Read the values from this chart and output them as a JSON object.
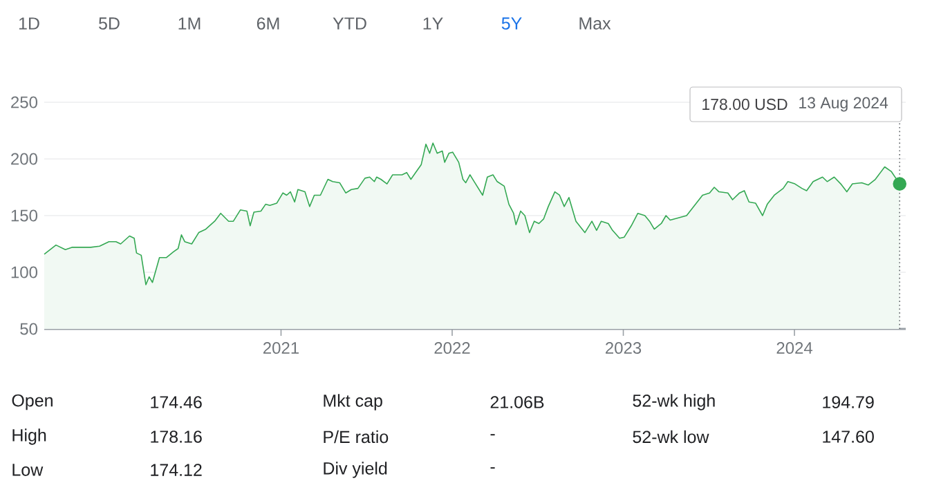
{
  "chart_data": {
    "type": "area",
    "ylim": [
      50,
      250
    ],
    "yticks": [
      50,
      100,
      150,
      200,
      250
    ],
    "xlim": [
      "2019-08-14",
      "2024-08-26"
    ],
    "xticks": [
      "2021",
      "2022",
      "2023",
      "2024"
    ],
    "grid": "y",
    "x": [
      "2019-08-14",
      "2019-09-08",
      "2019-09-28",
      "2019-10-12",
      "2019-11-21",
      "2019-12-10",
      "2019-12-30",
      "2020-01-14",
      "2020-01-24",
      "2020-02-12",
      "2020-02-22",
      "2020-02-27",
      "2020-03-08",
      "2020-03-18",
      "2020-03-25",
      "2020-04-01",
      "2020-04-16",
      "2020-05-01",
      "2020-05-16",
      "2020-05-26",
      "2020-06-02",
      "2020-06-09",
      "2020-06-24",
      "2020-07-09",
      "2020-07-24",
      "2020-08-12",
      "2020-08-25",
      "2020-09-11",
      "2020-09-21",
      "2020-10-06",
      "2020-10-20",
      "2020-10-27",
      "2020-11-04",
      "2020-11-19",
      "2020-11-29",
      "2020-12-08",
      "2020-12-23",
      "2021-01-05",
      "2021-01-13",
      "2021-01-21",
      "2021-01-30",
      "2021-02-06",
      "2021-02-21",
      "2021-03-03",
      "2021-03-13",
      "2021-03-26",
      "2021-04-11",
      "2021-04-21",
      "2021-05-06",
      "2021-05-19",
      "2021-05-31",
      "2021-06-14",
      "2021-06-29",
      "2021-07-09",
      "2021-07-19",
      "2021-07-24",
      "2021-08-02",
      "2021-08-15",
      "2021-08-27",
      "2021-09-16",
      "2021-09-26",
      "2021-10-05",
      "2021-10-15",
      "2021-10-27",
      "2021-11-06",
      "2021-11-14",
      "2021-11-21",
      "2021-11-30",
      "2021-12-11",
      "2021-12-16",
      "2021-12-25",
      "2022-01-02",
      "2022-01-15",
      "2022-01-24",
      "2022-01-30",
      "2022-02-08",
      "2022-02-17",
      "2022-03-07",
      "2022-03-17",
      "2022-03-29",
      "2022-04-07",
      "2022-04-22",
      "2022-05-02",
      "2022-05-12",
      "2022-05-17",
      "2022-05-27",
      "2022-06-05",
      "2022-06-15",
      "2022-06-25",
      "2022-07-05",
      "2022-07-15",
      "2022-07-25",
      "2022-08-08",
      "2022-08-18",
      "2022-08-28",
      "2022-09-07",
      "2022-09-22",
      "2022-10-11",
      "2022-10-26",
      "2022-11-05",
      "2022-11-15",
      "2022-11-30",
      "2022-12-09",
      "2022-12-24",
      "2023-01-03",
      "2023-01-18",
      "2023-02-01",
      "2023-02-16",
      "2023-02-26",
      "2023-03-08",
      "2023-03-23",
      "2023-04-02",
      "2023-04-11",
      "2023-05-16",
      "2023-06-04",
      "2023-06-19",
      "2023-07-04",
      "2023-07-14",
      "2023-07-24",
      "2023-08-12",
      "2023-08-22",
      "2023-09-06",
      "2023-09-16",
      "2023-09-26",
      "2023-10-10",
      "2023-10-25",
      "2023-11-04",
      "2023-11-19",
      "2023-12-08",
      "2023-12-18",
      "2024-01-02",
      "2024-01-17",
      "2024-01-27",
      "2024-02-10",
      "2024-03-01",
      "2024-03-11",
      "2024-03-26",
      "2024-04-09",
      "2024-04-22",
      "2024-05-04",
      "2024-05-24",
      "2024-06-07",
      "2024-06-22",
      "2024-07-12",
      "2024-07-26",
      "2024-08-13"
    ],
    "series": [
      {
        "color": "#34a853",
        "values": [
          116,
          124,
          120,
          122,
          122,
          123,
          127,
          127,
          125,
          132,
          130,
          117,
          115,
          89,
          96,
          91,
          113,
          113,
          118,
          121,
          133,
          127,
          125,
          135,
          138,
          145,
          152,
          145,
          145,
          155,
          154,
          141,
          153,
          154,
          160,
          159,
          161,
          170,
          168,
          171,
          162,
          173,
          171,
          158,
          168,
          168,
          182,
          180,
          179,
          170,
          173,
          174,
          183,
          184,
          180,
          184,
          182,
          178,
          186,
          186,
          188,
          182,
          188,
          195,
          213,
          205,
          214,
          205,
          207,
          197,
          205,
          206,
          197,
          182,
          179,
          186,
          180,
          168,
          184,
          186,
          180,
          176,
          160,
          152,
          142,
          154,
          150,
          135,
          145,
          143,
          147,
          158,
          171,
          168,
          158,
          166,
          145,
          135,
          145,
          137,
          145,
          143,
          137,
          130,
          131,
          141,
          152,
          150,
          145,
          138,
          143,
          150,
          146,
          150,
          160,
          168,
          170,
          175,
          171,
          170,
          164,
          170,
          172,
          162,
          161,
          150,
          160,
          168,
          174,
          180,
          178,
          174,
          172,
          180,
          184,
          180,
          184,
          178,
          171,
          178,
          179,
          177,
          182,
          193,
          189,
          178
        ]
      }
    ],
    "ref_lines": [
      {
        "axis": "x",
        "value": "2024-08-13",
        "line_style": "dotted",
        "color": "#5f6368"
      }
    ],
    "annotations": [
      "1D",
      "5D",
      "1M",
      "6M",
      "YTD",
      "1Y",
      "5Y",
      "Max",
      "178.00 USD",
      "13 Aug 2024",
      "Open",
      "174.46",
      "Mkt cap",
      "21.06B",
      "52-wk high",
      "194.79",
      "High",
      "178.16",
      "P/E ratio",
      "-",
      "52-wk low",
      "147.60",
      "Low",
      "174.12",
      "Div yield",
      "-"
    ]
  }
}
